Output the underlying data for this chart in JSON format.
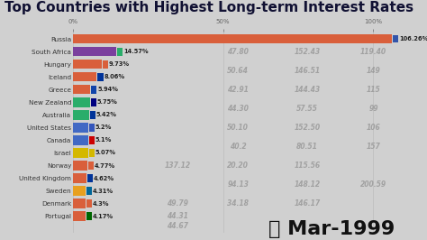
{
  "title": "Top Countries with Highest Long-term Interest Rates",
  "date_label": "Mar-1999",
  "x_ticks": [
    0,
    50,
    100
  ],
  "x_tick_labels": [
    "0%",
    "50%",
    "100%"
  ],
  "xlim": [
    0,
    115
  ],
  "background_color": "#d0d0d0",
  "countries": [
    "Russia",
    "South Africa",
    "Hungary",
    "Iceland",
    "Greece",
    "New Zealand",
    "Australia",
    "United States",
    "Canada",
    "Israel",
    "Norway",
    "United Kingdom",
    "Sweden",
    "Denmark",
    "Portugal"
  ],
  "values": [
    106.26,
    14.57,
    9.73,
    8.06,
    5.94,
    5.75,
    5.42,
    5.2,
    5.1,
    5.07,
    4.77,
    4.62,
    4.31,
    4.3,
    4.17
  ],
  "value_labels": [
    "106.26%",
    "14.57%",
    "9.73%",
    "8.06%",
    "5.94%",
    "5.75%",
    "5.42%",
    "5.2%",
    "5.1%",
    "5.07%",
    "4.77%",
    "4.62%",
    "4.31%",
    "4.3%",
    "4.17%"
  ],
  "bar_colors": [
    "#d95f3b",
    "#7b3f9e",
    "#d95f3b",
    "#d95f3b",
    "#d95f3b",
    "#2aad6a",
    "#2aad6a",
    "#4169c4",
    "#4169c4",
    "#d4b800",
    "#d95f3b",
    "#d95f3b",
    "#e8a020",
    "#d95f3b",
    "#d95f3b"
  ],
  "flag_colors": [
    "#3355aa",
    "#2aad6a",
    "#d95f3b",
    "#003399",
    "#1144aa",
    "#000080",
    "#003399",
    "#3355bb",
    "#cc0000",
    "#d4b800",
    "#d95f3b",
    "#003399",
    "#006699",
    "#d95f3b",
    "#006600"
  ],
  "title_fontsize": 11,
  "label_fontsize": 5.2,
  "value_fontsize": 4.8,
  "date_fontsize": 16,
  "watermarks": [
    [
      55,
      13,
      "47.80"
    ],
    [
      78,
      13,
      "152.43"
    ],
    [
      100,
      13,
      "119.40"
    ],
    [
      55,
      11.5,
      "50.64"
    ],
    [
      78,
      11.5,
      "146.51"
    ],
    [
      100,
      11.5,
      "149"
    ],
    [
      55,
      10,
      "42.91"
    ],
    [
      78,
      10,
      "144.43"
    ],
    [
      100,
      10,
      "115"
    ],
    [
      55,
      8.5,
      "44.30"
    ],
    [
      78,
      8.5,
      "57.55"
    ],
    [
      100,
      8.5,
      "99"
    ],
    [
      55,
      7,
      "50.10"
    ],
    [
      78,
      7,
      "152.50"
    ],
    [
      100,
      7,
      "106"
    ],
    [
      55,
      5.5,
      "40.2"
    ],
    [
      78,
      5.5,
      "80.51"
    ],
    [
      100,
      5.5,
      "157"
    ],
    [
      35,
      4,
      "137.12"
    ],
    [
      55,
      4,
      "20.20"
    ],
    [
      78,
      4,
      "115.56"
    ],
    [
      55,
      2.5,
      "94.13"
    ],
    [
      78,
      2.5,
      "148.12"
    ],
    [
      100,
      2.5,
      "200.59"
    ],
    [
      35,
      1,
      "49.79"
    ],
    [
      55,
      1,
      "34.18"
    ],
    [
      78,
      1,
      "146.17"
    ],
    [
      35,
      0,
      "44.31"
    ],
    [
      35,
      -0.8,
      "44.67"
    ]
  ]
}
